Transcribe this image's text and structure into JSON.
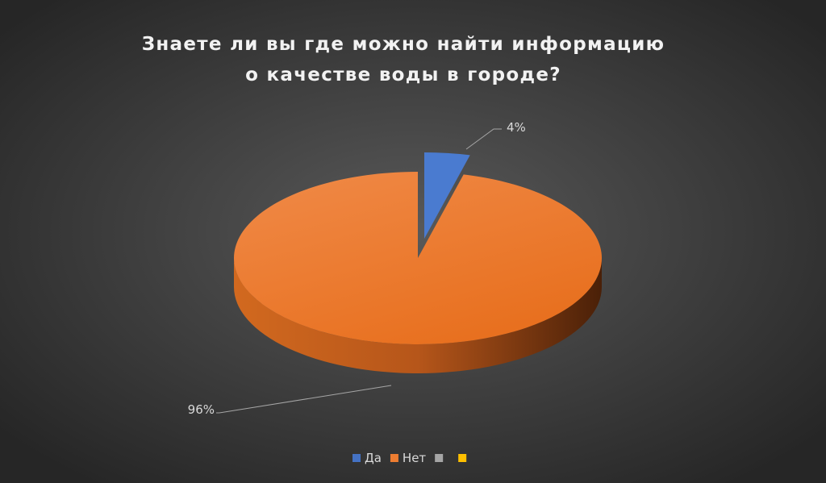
{
  "chart_data": {
    "type": "pie3d",
    "title": [
      "Знаете ли вы где можно найти информацию",
      "о качестве воды в городе?"
    ],
    "categories": [
      "Да",
      "Нет",
      null,
      null
    ],
    "values": [
      4,
      96,
      0,
      0
    ],
    "value_labels": [
      "4%",
      "96%",
      null,
      null
    ],
    "colors": [
      "#4472c4",
      "#ed7d31",
      "#a5a5a5",
      "#ffc000"
    ],
    "legend": "bottom"
  }
}
